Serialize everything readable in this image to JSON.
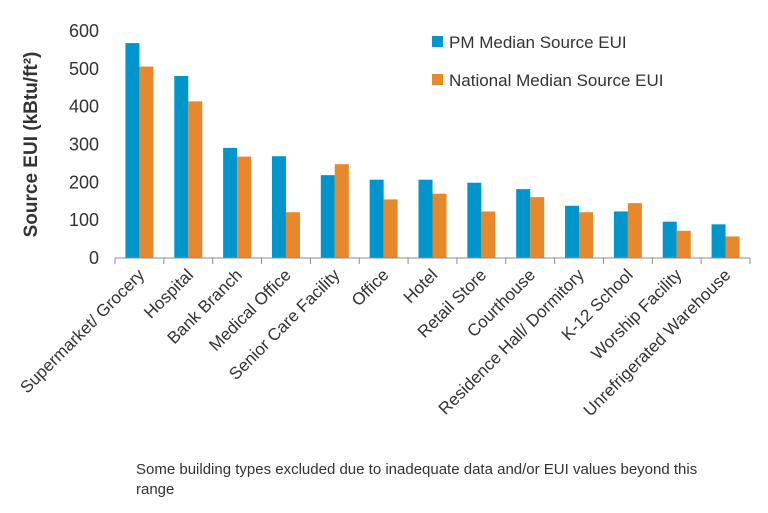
{
  "chart_data": {
    "type": "bar",
    "title": "",
    "xlabel": "",
    "ylabel": "Source EUI (kBtu/ft²)",
    "ylim": [
      0,
      600
    ],
    "yticks": [
      0,
      100,
      200,
      300,
      400,
      500,
      600
    ],
    "grid": false,
    "legend_position": "top-right",
    "categories": [
      "Supermarket/ Grocery",
      "Hospital",
      "Bank Branch",
      "Medical Office",
      "Senior Care Facility",
      "Office",
      "Hotel",
      "Retail Store",
      "Courthouse",
      "Residence Hall/ Dormitory",
      "K-12 School",
      "Worship Facility",
      "Unrefrigerated Warehouse"
    ],
    "series": [
      {
        "name": "PM Median Source EUI",
        "color": "#0096CC",
        "values": [
          568,
          481,
          291,
          269,
          219,
          207,
          207,
          199,
          182,
          138,
          123,
          96,
          89
        ]
      },
      {
        "name": "National Median Source EUI",
        "color": "#E8882D",
        "values": [
          506,
          414,
          268,
          121,
          248,
          155,
          170,
          123,
          161,
          121,
          145,
          72,
          57
        ]
      }
    ]
  },
  "footnote": "Some building types excluded due to inadequate data and/or EUI values beyond this range"
}
